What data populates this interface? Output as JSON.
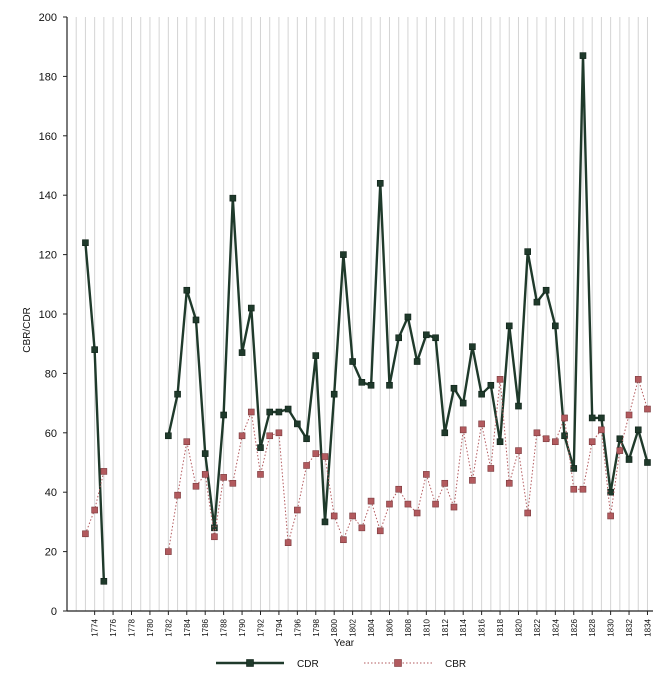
{
  "chart_data": {
    "type": "line",
    "xlabel": "Year",
    "ylabel": "CBR/CDR",
    "ylim": [
      0,
      200
    ],
    "xlim": [
      1773,
      1834
    ],
    "grid": "vertical",
    "legend_position": "bottom",
    "y_ticks": [
      "0",
      "20",
      "40",
      "60",
      "80",
      "100",
      "120",
      "140",
      "160",
      "180",
      "200"
    ],
    "x_ticks": [
      "1774",
      "1776",
      "1778",
      "1780",
      "1782",
      "1784",
      "1786",
      "1788",
      "1790",
      "1792",
      "1794",
      "1796",
      "1798",
      "1800",
      "1802",
      "1804",
      "1806",
      "1808",
      "1810",
      "1812",
      "1814",
      "1816",
      "1818",
      "1820",
      "1822",
      "1824",
      "1826",
      "1828",
      "1830",
      "1832",
      "1834"
    ],
    "series": [
      {
        "name": "CDR",
        "color": "#1f3a2b",
        "marker": "square",
        "line": "solid",
        "x": [
          1773,
          1774,
          1775,
          1782,
          1783,
          1784,
          1785,
          1786,
          1787,
          1788,
          1789,
          1790,
          1791,
          1792,
          1793,
          1794,
          1795,
          1796,
          1797,
          1798,
          1799,
          1800,
          1801,
          1802,
          1803,
          1804,
          1805,
          1806,
          1807,
          1808,
          1809,
          1810,
          1811,
          1812,
          1813,
          1814,
          1815,
          1816,
          1817,
          1818,
          1819,
          1820,
          1821,
          1822,
          1823,
          1824,
          1825,
          1826,
          1827,
          1828,
          1829,
          1830,
          1831,
          1832,
          1833,
          1834
        ],
        "y": [
          124,
          88,
          10,
          59,
          73,
          108,
          98,
          53,
          28,
          66,
          139,
          87,
          102,
          55,
          67,
          67,
          68,
          63,
          58,
          86,
          30,
          73,
          120,
          84,
          77,
          76,
          144,
          76,
          92,
          99,
          84,
          93,
          92,
          60,
          75,
          70,
          89,
          73,
          76,
          57,
          96,
          69,
          121,
          104,
          108,
          96,
          59,
          48,
          187,
          65,
          65,
          40,
          58,
          51,
          61,
          50
        ]
      },
      {
        "name": "CBR",
        "color": "#b25a5e",
        "marker": "square",
        "line": "dotted",
        "x": [
          1773,
          1774,
          1775,
          1782,
          1783,
          1784,
          1785,
          1786,
          1787,
          1788,
          1789,
          1790,
          1791,
          1792,
          1793,
          1794,
          1795,
          1796,
          1797,
          1798,
          1799,
          1800,
          1801,
          1802,
          1803,
          1804,
          1805,
          1806,
          1807,
          1808,
          1809,
          1810,
          1811,
          1812,
          1813,
          1814,
          1815,
          1816,
          1817,
          1818,
          1819,
          1820,
          1821,
          1822,
          1823,
          1824,
          1825,
          1826,
          1827,
          1828,
          1829,
          1830,
          1831,
          1832,
          1833,
          1834
        ],
        "y": [
          26,
          34,
          47,
          20,
          39,
          57,
          42,
          46,
          25,
          45,
          43,
          59,
          67,
          46,
          59,
          60,
          23,
          34,
          49,
          53,
          52,
          32,
          24,
          32,
          28,
          37,
          27,
          36,
          41,
          36,
          33,
          46,
          36,
          43,
          35,
          61,
          44,
          63,
          48,
          78,
          43,
          54,
          33,
          60,
          58,
          57,
          65,
          41,
          41,
          57,
          61,
          32,
          54,
          66,
          78,
          68
        ]
      }
    ]
  }
}
